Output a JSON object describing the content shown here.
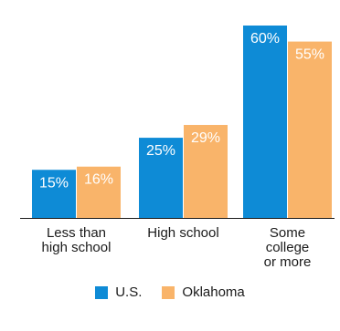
{
  "chart_data": {
    "type": "bar",
    "categories": [
      "Less than\nhigh school",
      "High school",
      "Some\ncollege\nor more"
    ],
    "series": [
      {
        "name": "U.S.",
        "values": [
          15,
          25,
          60
        ],
        "labels": [
          "15%",
          "25%",
          "60%"
        ],
        "color": "#0e8bd6"
      },
      {
        "name": "Oklahoma",
        "values": [
          16,
          29,
          55
        ],
        "labels": [
          "16%",
          "29%",
          "55%"
        ],
        "color": "#f9b46a"
      }
    ],
    "ylim": [
      0,
      60
    ],
    "grid": false,
    "legend_position": "bottom"
  }
}
